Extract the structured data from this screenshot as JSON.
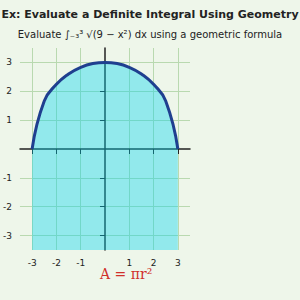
{
  "chart_data": {
    "type": "line",
    "title": "Ex: Evaluate a Definite Integral Using Geometry",
    "subtitle": "Evaluate ∫₋₃³ √(9 − x²) dx using a geometric formula",
    "annotation": "A = πr²",
    "x": [
      -3,
      -2.5,
      -2,
      -1.5,
      -1,
      -0.5,
      0,
      0.5,
      1,
      1.5,
      2,
      2.5,
      3
    ],
    "values": [
      0,
      1.66,
      2.24,
      2.6,
      2.83,
      2.96,
      3,
      2.96,
      2.83,
      2.6,
      2.24,
      1.66,
      0
    ],
    "color": "#1f3f8f",
    "xlim": [
      -3.5,
      3.5
    ],
    "xticks": [
      -3,
      -2,
      -1,
      1,
      2,
      3
    ],
    "ylim": [
      -3.5,
      3.5
    ],
    "yticks": [
      -3,
      -2,
      -1,
      1,
      2,
      3
    ],
    "grid": true
  }
}
